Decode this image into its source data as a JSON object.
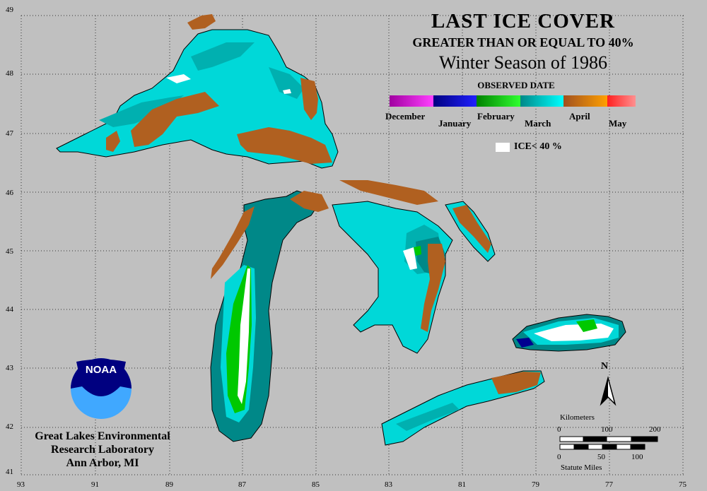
{
  "title": "LAST ICE COVER",
  "subtitle": "GREATER THAN OR EQUAL TO 40%",
  "season": "Winter Season of 1986",
  "legend": {
    "heading": "OBSERVED DATE",
    "months": [
      "December",
      "January",
      "February",
      "March",
      "April",
      "May"
    ],
    "ice_label": "ICE< 40 %",
    "colors": {
      "december": "#a000a0",
      "january": "#000090",
      "february": "#00c800",
      "march": "#00d8d8",
      "march_dark": "#008888",
      "april": "#b06020",
      "may": "#ff3030",
      "ice_lt_40": "#ffffff"
    }
  },
  "axes": {
    "longitude_labels": [
      "93",
      "91",
      "89",
      "87",
      "85",
      "83",
      "81",
      "79",
      "77",
      "75"
    ],
    "latitude_labels": [
      "49",
      "48",
      "47",
      "46",
      "45",
      "44",
      "43",
      "42",
      "41"
    ]
  },
  "organization": {
    "logo_text": "NOAA",
    "line1": "Great Lakes Environmental",
    "line2": "Research Laboratory",
    "line3": "Ann Arbor, MI"
  },
  "scale_bar": {
    "kilometers_label": "Kilometers",
    "km_ticks": [
      "0",
      "100",
      "200"
    ],
    "mile_ticks": [
      "0",
      "50",
      "100"
    ],
    "miles_label": "Statute Miles"
  },
  "north_label": "N"
}
